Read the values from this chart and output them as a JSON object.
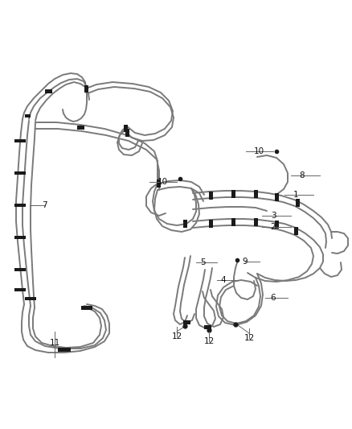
{
  "background_color": "#ffffff",
  "line_color": "#7a7a7a",
  "clamp_color": "#1a1a1a",
  "label_color": "#111111",
  "figsize": [
    4.38,
    5.33
  ],
  "dpi": 100,
  "lw_hose": 1.4,
  "lw_hose2": 1.1
}
